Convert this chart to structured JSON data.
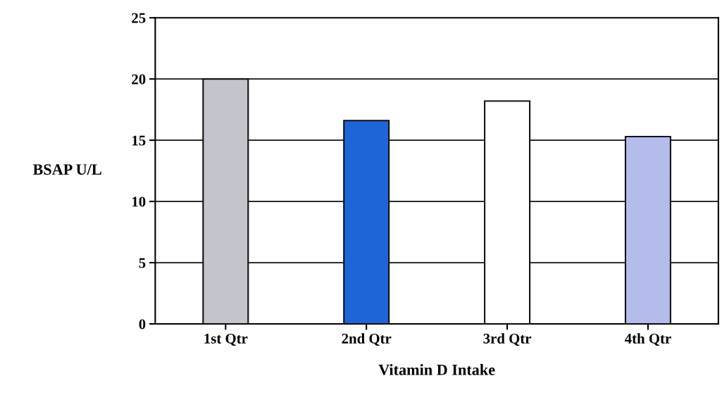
{
  "chart_data": {
    "type": "bar",
    "xlabel": "Vitamin D Intake",
    "ylabel": "BSAP U/L",
    "categories": [
      "1st Qtr",
      "2nd Qtr",
      "3rd Qtr",
      "4th Qtr"
    ],
    "values": [
      20.0,
      16.6,
      18.2,
      15.3
    ],
    "colors": [
      "#c4c4cc",
      "#1e66d8",
      "#ffffff",
      "#b4bcec"
    ],
    "ylim": [
      0,
      25
    ],
    "yticks": [
      0,
      5,
      10,
      15,
      20,
      25
    ],
    "grid": "y"
  }
}
